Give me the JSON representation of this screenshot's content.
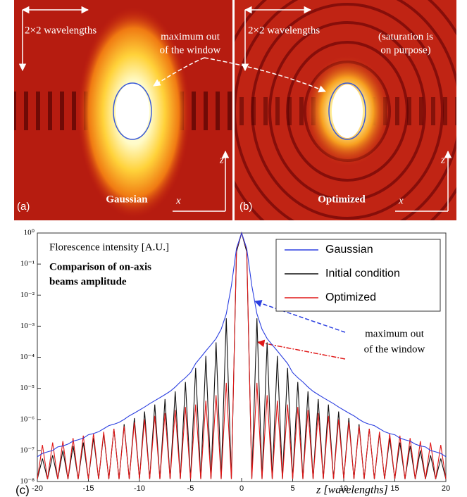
{
  "panels": [
    {
      "label": "(a)",
      "name": "Gaussian",
      "scale": "2×2 wavelengths",
      "axis_v": "z",
      "axis_h": "x",
      "notes": [
        "maximum out",
        "of the window"
      ]
    },
    {
      "label": "(b)",
      "name": "Optimized",
      "scale": "2×2 wavelengths",
      "axis_v": "z",
      "axis_h": "x",
      "notes": [
        "(saturation is",
        "on purpose)"
      ]
    }
  ],
  "chart_data": {
    "type": "line",
    "label": "(c)",
    "xlabel": "z [wavelengths]",
    "annotations": [
      "Florescence intensity [A.U.]",
      "Comparison of on-axis",
      "beams amplitude",
      "maximum out",
      "of the window"
    ],
    "yscale": "log",
    "xlim": [
      -20,
      20
    ],
    "ylim": [
      1e-08,
      1
    ],
    "xticks": [
      -20,
      -15,
      -10,
      -5,
      0,
      5,
      10,
      15,
      20
    ],
    "yticks": [
      {
        "value": 1e-08,
        "label": "10⁻⁸"
      },
      {
        "value": 1e-07,
        "label": "10⁻⁷"
      },
      {
        "value": 1e-06,
        "label": "10⁻⁶"
      },
      {
        "value": 1e-05,
        "label": "10⁻⁵"
      },
      {
        "value": 0.0001,
        "label": "10⁻⁴"
      },
      {
        "value": 0.001,
        "label": "10⁻³"
      },
      {
        "value": 0.01,
        "label": "10⁻²"
      },
      {
        "value": 0.1,
        "label": "10⁻¹"
      },
      {
        "value": 1,
        "label": "10⁰"
      }
    ],
    "legend": "upper right",
    "x": [
      -20,
      -19.5,
      -19,
      -18.5,
      -18,
      -17.5,
      -17,
      -16.5,
      -16,
      -15.5,
      -15,
      -14.5,
      -14,
      -13.5,
      -13,
      -12.5,
      -12,
      -11.5,
      -11,
      -10.5,
      -10,
      -9.5,
      -9,
      -8.5,
      -8,
      -7.5,
      -7,
      -6.5,
      -6,
      -5.5,
      -5,
      -4.5,
      -4,
      -3.5,
      -3,
      -2.5,
      -2,
      -1.5,
      -1,
      -0.5,
      0,
      0.5,
      1,
      1.5,
      2,
      2.5,
      3,
      3.5,
      4,
      4.5,
      5,
      5.5,
      6,
      6.5,
      7,
      7.5,
      8,
      8.5,
      9,
      9.5,
      10,
      10.5,
      11,
      11.5,
      12,
      12.5,
      13,
      13.5,
      14,
      14.5,
      15,
      15.5,
      16,
      16.5,
      17,
      17.5,
      18,
      18.5,
      19,
      19.5,
      20
    ],
    "series": [
      {
        "name": "Gaussian",
        "color": "#2b3fe0",
        "values": [
          6.3e-08,
          8e-08,
          9e-08,
          1e-07,
          1.3e-07,
          1.4e-07,
          1.6e-07,
          2e-07,
          2.2e-07,
          2.5e-07,
          3.2e-07,
          3.5e-07,
          4e-07,
          5e-07,
          6.3e-07,
          7e-07,
          8e-07,
          1e-06,
          1.3e-06,
          1.6e-06,
          2e-06,
          2.5e-06,
          3.2e-06,
          4e-06,
          5e-06,
          6.3e-06,
          8e-06,
          1.1e-05,
          1.6e-05,
          2.2e-05,
          3.2e-05,
          6.3e-05,
          0.0001,
          0.00016,
          0.00025,
          0.0004,
          0.0008,
          0.0025,
          0.02,
          0.32,
          1,
          0.32,
          0.02,
          0.0025,
          0.0008,
          0.0004,
          0.00025,
          0.00016,
          0.0001,
          6.3e-05,
          3.2e-05,
          2.2e-05,
          1.6e-05,
          1.1e-05,
          8e-06,
          6.3e-06,
          5e-06,
          4e-06,
          3.2e-06,
          2.5e-06,
          2e-06,
          1.6e-06,
          1.3e-06,
          1e-06,
          8e-07,
          7e-07,
          6.3e-07,
          5e-07,
          4e-07,
          3.5e-07,
          3.2e-07,
          2.5e-07,
          2.2e-07,
          2e-07,
          1.6e-07,
          1.4e-07,
          1.3e-07,
          1e-07,
          9e-08,
          8e-08,
          6.3e-08
        ]
      },
      {
        "name": "Initial condition",
        "color": "#111111",
        "values": [
          1.2e-08,
          5.5e-08,
          1.2e-08,
          7e-08,
          1.2e-08,
          1e-07,
          1.2e-08,
          1.4e-07,
          1.2e-08,
          1.8e-07,
          1.2e-08,
          2.5e-07,
          1.2e-08,
          3.5e-07,
          1.2e-08,
          5e-07,
          1.2e-08,
          7e-07,
          1.2e-08,
          1.1e-06,
          1.2e-08,
          1.8e-06,
          1.2e-08,
          3e-06,
          1.2e-08,
          4.5e-06,
          1.2e-08,
          8e-06,
          1.2e-08,
          1.6e-05,
          1.2e-08,
          4.5e-05,
          1.2e-08,
          0.00011,
          1.2e-08,
          0.0003,
          1.2e-08,
          0.0018,
          1.2e-08,
          0.25,
          1,
          0.25,
          1.2e-08,
          0.0018,
          1.2e-08,
          0.0003,
          1.2e-08,
          0.00011,
          1.2e-08,
          4.5e-05,
          1.2e-08,
          1.6e-05,
          1.2e-08,
          8e-06,
          1.2e-08,
          4.5e-06,
          1.2e-08,
          3e-06,
          1.2e-08,
          1.8e-06,
          1.2e-08,
          1.1e-06,
          1.2e-08,
          7e-07,
          1.2e-08,
          5e-07,
          1.2e-08,
          3.5e-07,
          1.2e-08,
          2.5e-07,
          1.2e-08,
          1.8e-07,
          1.2e-08,
          1.4e-07,
          1.2e-08,
          1e-07,
          1.2e-08,
          7e-08,
          1.2e-08,
          5.5e-08,
          1.2e-08
        ]
      },
      {
        "name": "Optimized",
        "color": "#e01818",
        "values": [
          1.2e-08,
          1.5e-07,
          1.2e-08,
          1.8e-07,
          1.2e-08,
          2e-07,
          1.2e-08,
          2.5e-07,
          1.2e-08,
          3e-07,
          1.2e-08,
          3.5e-07,
          1.2e-08,
          4e-07,
          1.2e-08,
          5e-07,
          1.2e-08,
          6e-07,
          1.2e-08,
          8e-07,
          1.2e-08,
          1e-06,
          1.2e-08,
          1.3e-06,
          1.2e-08,
          1.6e-06,
          1.2e-08,
          2e-06,
          1.2e-08,
          2.5e-06,
          1.2e-08,
          3e-06,
          1.2e-08,
          4e-06,
          1.2e-08,
          6e-06,
          1.2e-08,
          1.5e-05,
          1.2e-08,
          0.3,
          1,
          0.3,
          1.2e-08,
          1.5e-05,
          1.2e-08,
          6e-06,
          1.2e-08,
          4e-06,
          1.2e-08,
          3e-06,
          1.2e-08,
          2.5e-06,
          1.2e-08,
          2e-06,
          1.2e-08,
          1.6e-06,
          1.2e-08,
          1.3e-06,
          1.2e-08,
          1e-06,
          1.2e-08,
          8e-07,
          1.2e-08,
          6e-07,
          1.2e-08,
          5e-07,
          1.2e-08,
          4e-07,
          1.2e-08,
          3.5e-07,
          1.2e-08,
          3e-07,
          1.2e-08,
          2.5e-07,
          1.2e-08,
          2e-07,
          1.2e-08,
          1.8e-07,
          1.2e-08,
          1.5e-07,
          1.2e-08
        ]
      }
    ]
  }
}
